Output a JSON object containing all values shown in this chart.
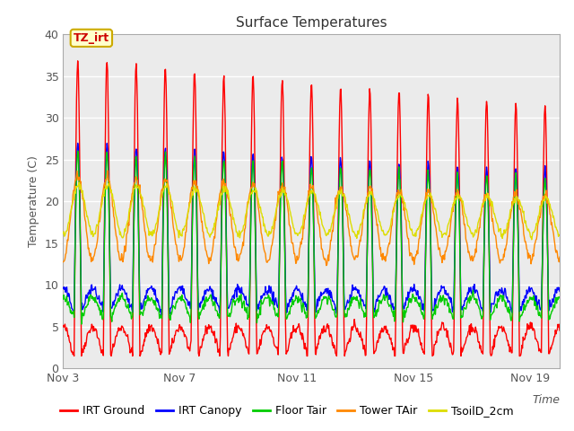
{
  "title": "Surface Temperatures",
  "ylabel": "Temperature (C)",
  "xlabel": "Time",
  "ylim": [
    0,
    40
  ],
  "yticks": [
    0,
    5,
    10,
    15,
    20,
    25,
    30,
    35,
    40
  ],
  "xtick_labels": [
    "Nov 3",
    "Nov 7",
    "Nov 11",
    "Nov 15",
    "Nov 19"
  ],
  "xtick_positions": [
    0,
    4,
    8,
    12,
    16
  ],
  "annotation_label": "TZ_irt",
  "series": {
    "IRT Ground": {
      "color": "#ff0000",
      "lw": 1.0
    },
    "IRT Canopy": {
      "color": "#0000ff",
      "lw": 1.0
    },
    "Floor Tair": {
      "color": "#00cc00",
      "lw": 1.0
    },
    "Tower TAir": {
      "color": "#ff8800",
      "lw": 1.0
    },
    "TsoilD_2cm": {
      "color": "#dddd00",
      "lw": 1.0
    }
  },
  "plot_bg": "#ebebeb",
  "grid_color": "#ffffff",
  "title_fontsize": 11,
  "axis_fontsize": 9,
  "tick_fontsize": 9,
  "legend_fontsize": 9
}
